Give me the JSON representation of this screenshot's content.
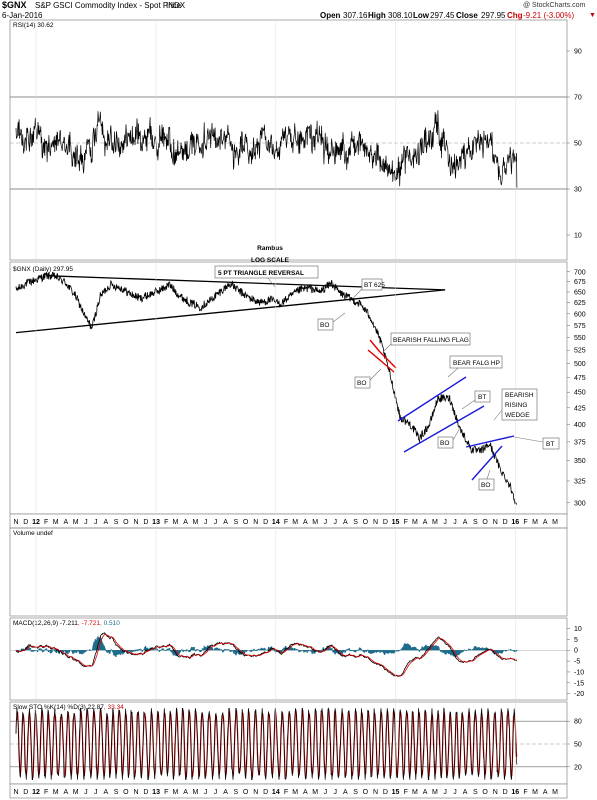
{
  "header": {
    "symbol": "$GNX",
    "description": "S&P GSCI Commodity Index - Spot Price",
    "exchange": "INDX",
    "date": "6-Jan-2016",
    "watermark": "@ StockCharts.com",
    "open_label": "Open",
    "open": "307.16",
    "high_label": "High",
    "high": "308.10",
    "low_label": "Low",
    "low": "297.45",
    "close_label": "Close",
    "close": "297.95",
    "chg_label": "Chg",
    "chg": "-9.21 (-3.00%)",
    "chg_icon": "down-triangle-icon"
  },
  "panels": {
    "rsi": {
      "title": "RSI(14) 30.62"
    },
    "price": {
      "title": "$GNX (Daily) 297.95",
      "author": "Rambus",
      "scale_note": "LOG SCALE"
    },
    "volume": {
      "title": "Volume undef"
    },
    "macd": {
      "title_main": "MACD(12,26,9) -7.211",
      "title_signal": ", -7.721",
      "title_hist": ", 0.510"
    },
    "sto": {
      "title_main": "Slow STO %K(14) %D(3) 22.87",
      "title_d": ", 33.34"
    }
  },
  "annotations": {
    "triangle": "5 PT TRIANGLE REVERSAL",
    "bt625": "BT 625",
    "bo1": "BO",
    "bear_flag": "BEARISH FALLING FLAG",
    "bo2": "BO",
    "bear_falg_hp": "BEAR FALG HP",
    "bt2": "BT",
    "bo3": "BO",
    "bearish": "BEARISH",
    "rising": "RISING",
    "wedge": "WEDGE",
    "bt3": "BT",
    "bo4": "BO"
  },
  "colors": {
    "price_line": "#000000",
    "trendline": "#000000",
    "flag_red": "#e00000",
    "channel_blue": "#1a1adc",
    "annotation_text_red": "#cc0000",
    "annotation_text_blue": "#1a1adc",
    "rsi_fill": "#9c7070",
    "macd_signal": "#e00000",
    "macd_hist": "#1f6c8c",
    "sto_d": "#cc0000",
    "chg_negative": "#cc0000"
  },
  "chart_data": [
    {
      "type": "line",
      "panel": "rsi",
      "title": "RSI(14) 30.62",
      "y_ticks": [
        10,
        30,
        50,
        70,
        90
      ],
      "ylim": [
        0,
        100
      ],
      "reference_lines": [
        30,
        50,
        70
      ],
      "fill_below": 30,
      "last_value": 30.62,
      "grid": true
    },
    {
      "type": "line",
      "panel": "price",
      "title": "$GNX (Daily) 297.95",
      "scale": "log",
      "y_ticks": [
        300,
        325,
        350,
        375,
        400,
        425,
        450,
        475,
        500,
        525,
        550,
        575,
        600,
        625,
        650,
        675,
        700
      ],
      "ylim": [
        290,
        715
      ],
      "x_ticks": [
        "N",
        "D",
        "12",
        "F",
        "M",
        "A",
        "M",
        "J",
        "J",
        "A",
        "S",
        "O",
        "N",
        "D",
        "13",
        "F",
        "M",
        "A",
        "M",
        "J",
        "J",
        "A",
        "S",
        "O",
        "N",
        "D",
        "14",
        "F",
        "M",
        "A",
        "M",
        "J",
        "J",
        "A",
        "S",
        "O",
        "N",
        "D",
        "15",
        "F",
        "M",
        "A",
        "M",
        "J",
        "J",
        "A",
        "S",
        "O",
        "N",
        "D",
        "16",
        "F",
        "M",
        "A",
        "M"
      ],
      "bold_ticks": [
        "12",
        "13",
        "14",
        "15",
        "16"
      ],
      "x_range": [
        "2011-11",
        "2016-05"
      ],
      "series": [
        {
          "x": [
            "2011-11-01",
            "2011-12-01",
            "2012-02-01",
            "2012-03-01",
            "2012-04-01",
            "2012-05-01",
            "2012-06-01",
            "2012-06-20",
            "2012-07-15",
            "2012-08-15",
            "2012-09-15",
            "2012-10-15",
            "2012-11-15",
            "2012-12-15",
            "2013-01-15",
            "2013-02-10",
            "2013-03-15",
            "2013-04-15",
            "2013-05-15",
            "2013-06-15",
            "2013-07-15",
            "2013-08-15",
            "2013-09-15",
            "2013-10-15",
            "2013-11-15",
            "2013-12-15",
            "2014-01-15",
            "2014-02-15",
            "2014-03-15",
            "2014-04-15",
            "2014-05-15",
            "2014-06-20",
            "2014-07-15",
            "2014-08-15",
            "2014-09-15",
            "2014-10-15",
            "2014-11-15",
            "2014-12-15",
            "2015-01-15",
            "2015-02-15",
            "2015-03-15",
            "2015-04-15",
            "2015-05-10",
            "2015-06-15",
            "2015-07-15",
            "2015-08-20",
            "2015-09-15",
            "2015-10-15",
            "2015-11-15",
            "2015-12-15",
            "2016-01-06"
          ],
          "values": [
            655,
            670,
            690,
            688,
            672,
            640,
            590,
            570,
            640,
            668,
            660,
            645,
            635,
            645,
            655,
            668,
            640,
            625,
            615,
            630,
            650,
            670,
            650,
            635,
            625,
            632,
            622,
            640,
            655,
            660,
            650,
            672,
            648,
            635,
            622,
            595,
            545,
            480,
            410,
            400,
            380,
            400,
            440,
            440,
            395,
            365,
            362,
            372,
            340,
            320,
            297.95
          ]
        }
      ],
      "trendlines": [
        {
          "name": "triangle-top",
          "from": [
            "2012-02-01",
            690
          ],
          "to": [
            "2015-04-01",
            655
          ]
        },
        {
          "name": "triangle-bottom",
          "from": [
            "2011-11-01",
            560
          ],
          "to": [
            "2015-04-01",
            655
          ]
        }
      ],
      "last_value": 297.95
    },
    {
      "type": "bar",
      "panel": "volume",
      "title": "Volume undef",
      "values": []
    },
    {
      "type": "line",
      "panel": "macd",
      "title": "MACD(12,26,9) -7.211, -7.721, 0.510",
      "y_ticks": [
        -20,
        -15,
        -10,
        -5,
        0,
        5,
        10
      ],
      "ylim": [
        -22,
        13
      ],
      "series": [
        {
          "name": "MACD(12,26,9)",
          "last": -7.211
        },
        {
          "name": "Signal",
          "last": -7.721
        },
        {
          "name": "Histogram",
          "last": 0.51
        }
      ]
    },
    {
      "type": "line",
      "panel": "sto",
      "title": "Slow STO %K(14) %D(3) 22.87, 33.34",
      "y_ticks": [
        20,
        50,
        80
      ],
      "ylim": [
        0,
        100
      ],
      "reference_lines": [
        20,
        50,
        80
      ],
      "series": [
        {
          "name": "%K(14)",
          "last": 22.87
        },
        {
          "name": "%D(3)",
          "last": 33.34
        }
      ]
    }
  ]
}
